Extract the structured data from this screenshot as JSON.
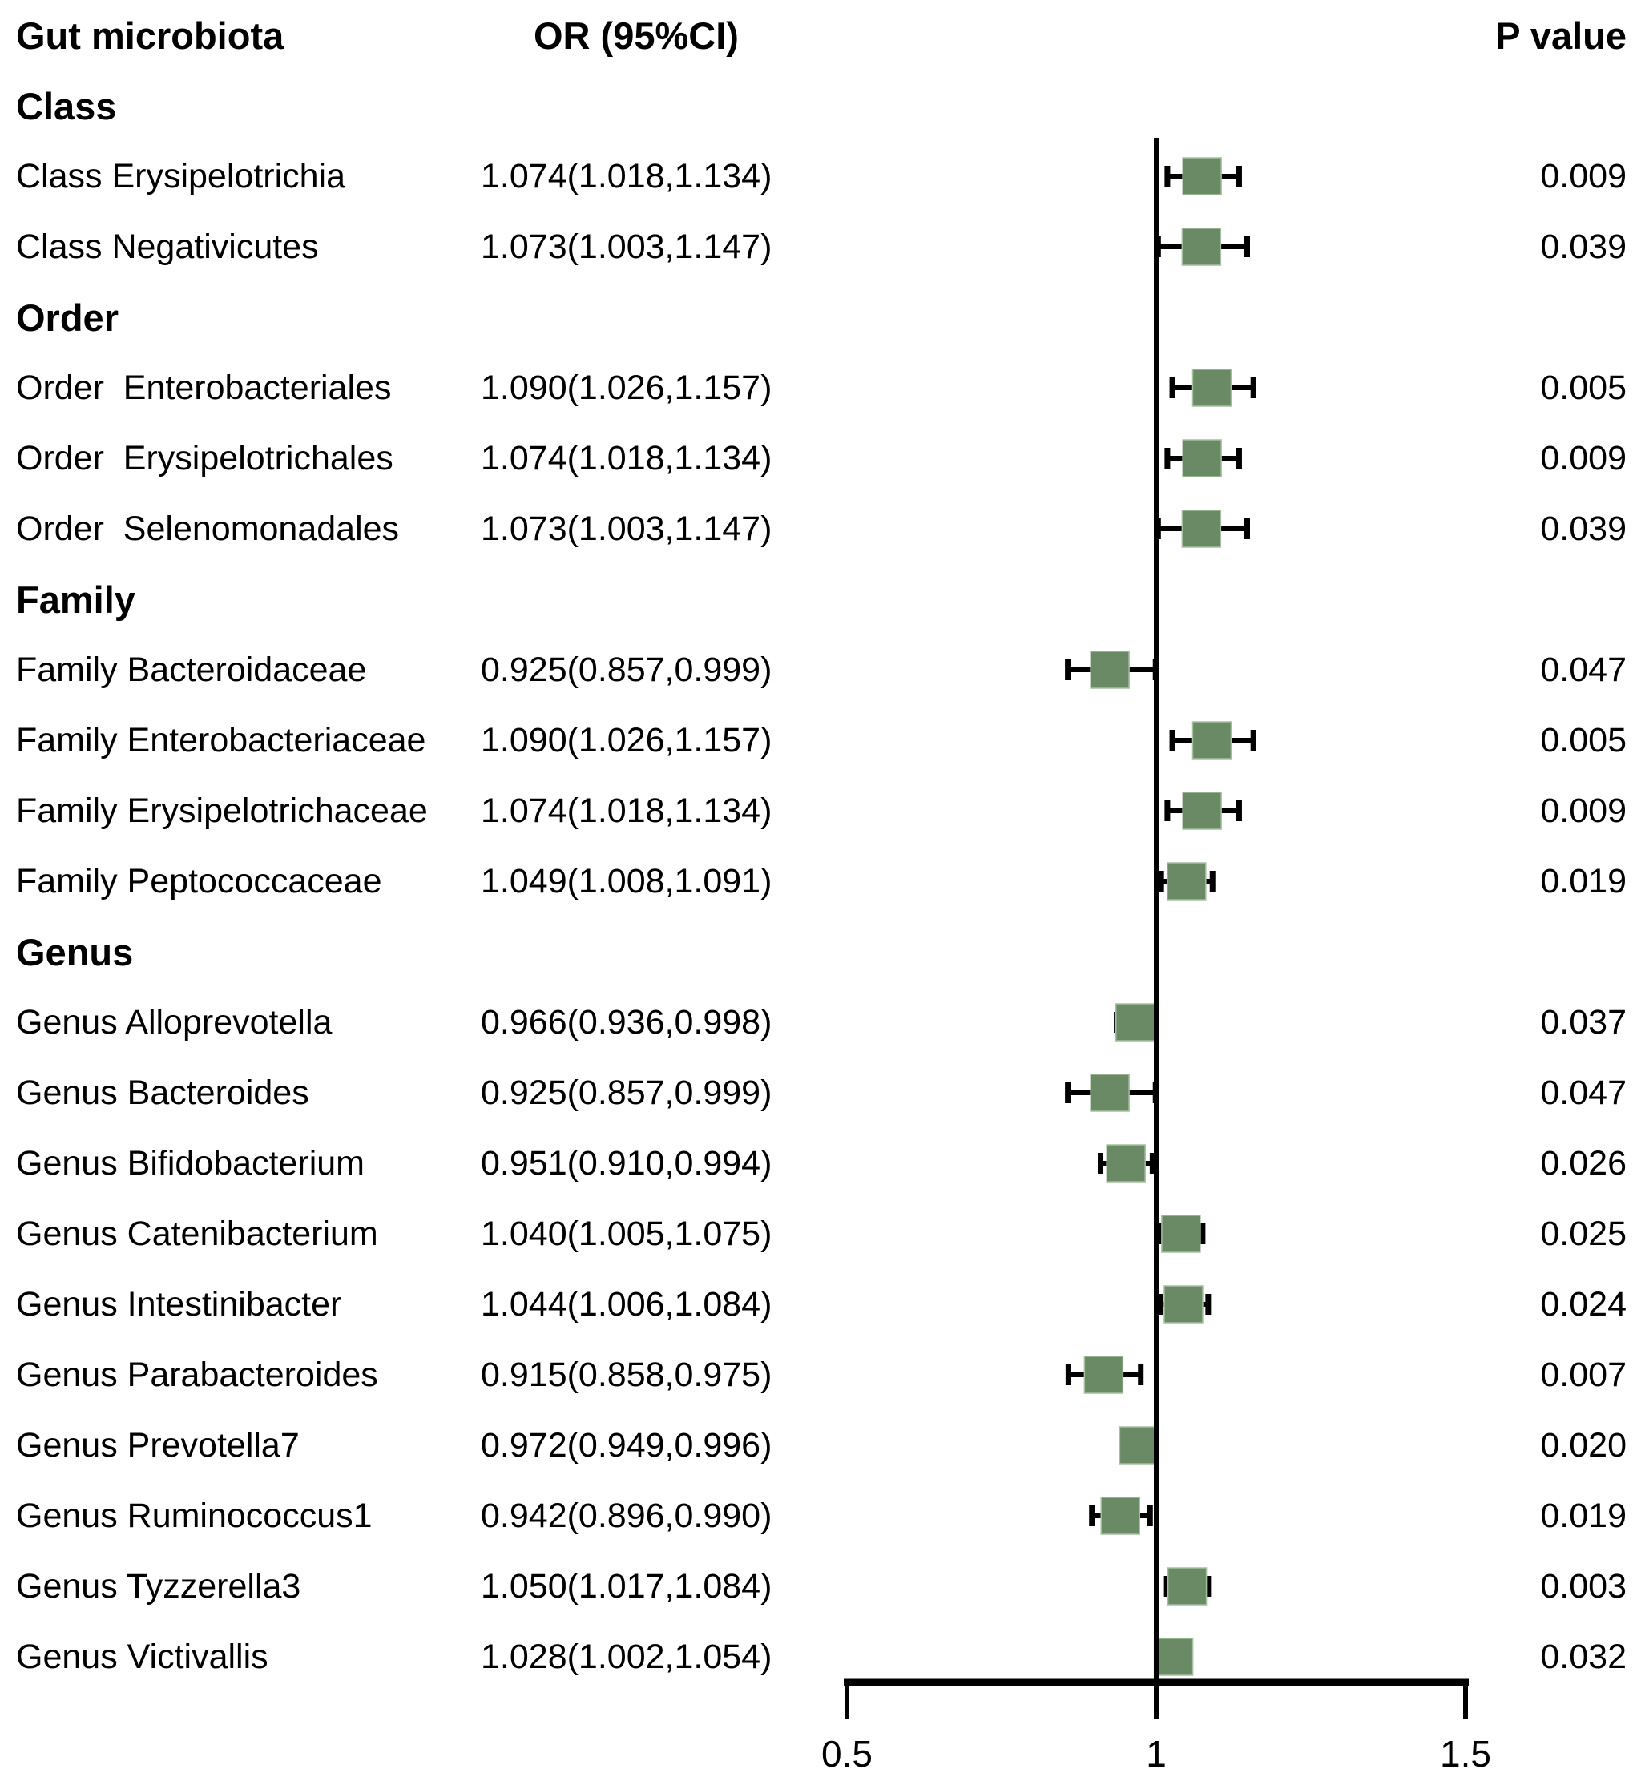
{
  "figure": {
    "columns": {
      "taxon": "Gut microbiota",
      "or_ci": "OR (95%CI)",
      "p": "P value"
    }
  },
  "chart_data": {
    "type": "forest",
    "title": "",
    "xlabel": "",
    "axis": {
      "xlim": [
        0.5,
        1.5
      ],
      "tick_labels": [
        "0.5",
        "1",
        "1.5"
      ],
      "tick_values": [
        0.5,
        1,
        1.5
      ],
      "ref_line": 1,
      "grid": false
    },
    "marker_color": "#698a64",
    "line_color": "#000000",
    "sections": [
      {
        "name": "Class",
        "items": [
          {
            "label": "Class Erysipelotrichia",
            "or_ci": "1.074(1.018,1.134)",
            "or": 1.074,
            "ci_low": 1.018,
            "ci_high": 1.134,
            "p": "0.009"
          },
          {
            "label": "Class Negativicutes",
            "or_ci": "1.073(1.003,1.147)",
            "or": 1.073,
            "ci_low": 1.003,
            "ci_high": 1.147,
            "p": "0.039"
          }
        ]
      },
      {
        "name": "Order",
        "items": [
          {
            "label": "Order  Enterobacteriales",
            "or_ci": "1.090(1.026,1.157)",
            "or": 1.09,
            "ci_low": 1.026,
            "ci_high": 1.157,
            "p": "0.005"
          },
          {
            "label": "Order  Erysipelotrichales",
            "or_ci": "1.074(1.018,1.134)",
            "or": 1.074,
            "ci_low": 1.018,
            "ci_high": 1.134,
            "p": "0.009"
          },
          {
            "label": "Order  Selenomonadales",
            "or_ci": "1.073(1.003,1.147)",
            "or": 1.073,
            "ci_low": 1.003,
            "ci_high": 1.147,
            "p": "0.039"
          }
        ]
      },
      {
        "name": "Family",
        "items": [
          {
            "label": "Family Bacteroidaceae",
            "or_ci": "0.925(0.857,0.999)",
            "or": 0.925,
            "ci_low": 0.857,
            "ci_high": 0.999,
            "p": "0.047"
          },
          {
            "label": "Family Enterobacteriaceae",
            "or_ci": "1.090(1.026,1.157)",
            "or": 1.09,
            "ci_low": 1.026,
            "ci_high": 1.157,
            "p": "0.005"
          },
          {
            "label": "Family Erysipelotrichaceae",
            "or_ci": "1.074(1.018,1.134)",
            "or": 1.074,
            "ci_low": 1.018,
            "ci_high": 1.134,
            "p": "0.009"
          },
          {
            "label": "Family Peptococcaceae",
            "or_ci": "1.049(1.008,1.091)",
            "or": 1.049,
            "ci_low": 1.008,
            "ci_high": 1.091,
            "p": "0.019"
          }
        ]
      },
      {
        "name": "Genus",
        "items": [
          {
            "label": "Genus Alloprevotella",
            "or_ci": "0.966(0.936,0.998)",
            "or": 0.966,
            "ci_low": 0.936,
            "ci_high": 0.998,
            "p": "0.037"
          },
          {
            "label": "Genus Bacteroides",
            "or_ci": "0.925(0.857,0.999)",
            "or": 0.925,
            "ci_low": 0.857,
            "ci_high": 0.999,
            "p": "0.047"
          },
          {
            "label": "Genus Bifidobacterium",
            "or_ci": "0.951(0.910,0.994)",
            "or": 0.951,
            "ci_low": 0.91,
            "ci_high": 0.994,
            "p": "0.026"
          },
          {
            "label": "Genus Catenibacterium",
            "or_ci": "1.040(1.005,1.075)",
            "or": 1.04,
            "ci_low": 1.005,
            "ci_high": 1.075,
            "p": "0.025"
          },
          {
            "label": "Genus Intestinibacter",
            "or_ci": "1.044(1.006,1.084)",
            "or": 1.044,
            "ci_low": 1.006,
            "ci_high": 1.084,
            "p": "0.024"
          },
          {
            "label": "Genus Parabacteroides",
            "or_ci": "0.915(0.858,0.975)",
            "or": 0.915,
            "ci_low": 0.858,
            "ci_high": 0.975,
            "p": "0.007"
          },
          {
            "label": "Genus Prevotella7",
            "or_ci": "0.972(0.949,0.996)",
            "or": 0.972,
            "ci_low": 0.949,
            "ci_high": 0.996,
            "p": "0.020"
          },
          {
            "label": "Genus Ruminococcus1",
            "or_ci": "0.942(0.896,0.990)",
            "or": 0.942,
            "ci_low": 0.896,
            "ci_high": 0.99,
            "p": "0.019"
          },
          {
            "label": "Genus Tyzzerella3",
            "or_ci": "1.050(1.017,1.084)",
            "or": 1.05,
            "ci_low": 1.017,
            "ci_high": 1.084,
            "p": "0.003"
          },
          {
            "label": "Genus Victivallis",
            "or_ci": "1.028(1.002,1.054)",
            "or": 1.028,
            "ci_low": 1.002,
            "ci_high": 1.054,
            "p": "0.032"
          }
        ]
      }
    ]
  }
}
